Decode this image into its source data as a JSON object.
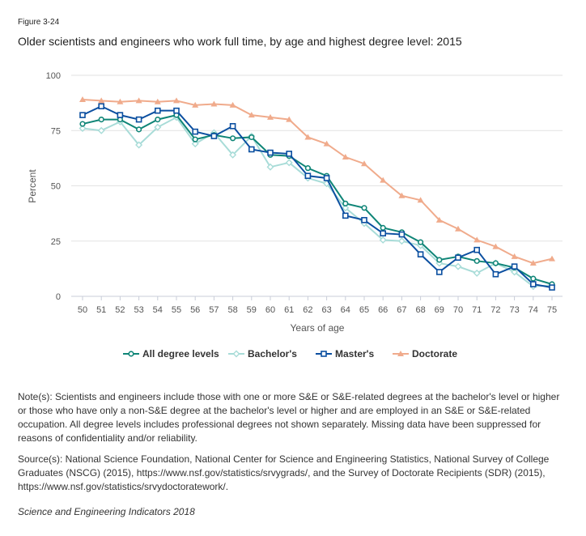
{
  "figure_label": "Figure 3-24",
  "title": "Older scientists and engineers who work full time, by age and highest degree level: 2015",
  "notes": "Note(s): Scientists and engineers include those with one or more S&E or S&E-related degrees at the bachelor's level or higher or those who have only a non-S&E degree at the bachelor's level or higher and are employed in an S&E or S&E-related occupation. All degree levels includes professional degrees not shown separately. Missing data have been suppressed for reasons of confidentiality and/or reliability.",
  "sources": "Source(s): National Science Foundation, National Center for Science and Engineering Statistics, National Survey of College Graduates (NSCG) (2015), https://www.nsf.gov/statistics/srvygrads/, and the Survey of Doctorate Recipients (SDR) (2015), https://www.nsf.gov/statistics/srvydoctoratework/.",
  "citation": "Science and Engineering Indicators 2018",
  "chart_data": {
    "type": "line",
    "xlabel": "Years of age",
    "ylabel": "Percent",
    "ylim": [
      0,
      100
    ],
    "yticks": [
      0,
      25,
      50,
      75,
      100
    ],
    "grid": true,
    "legend": "bottom",
    "x": [
      50,
      51,
      52,
      53,
      54,
      55,
      56,
      57,
      58,
      59,
      60,
      61,
      62,
      63,
      64,
      65,
      66,
      67,
      68,
      69,
      70,
      71,
      72,
      73,
      74,
      75
    ],
    "series": [
      {
        "name": "All degree levels",
        "color": "#0f8577",
        "marker": "circle",
        "values": [
          78,
          80,
          80,
          75.5,
          80,
          82,
          71,
          73,
          71.5,
          72,
          64,
          63.5,
          58,
          54.5,
          42,
          40,
          31,
          29,
          24.5,
          16.5,
          18,
          16,
          15,
          13,
          8,
          5.5
        ]
      },
      {
        "name": "Bachelor's",
        "color": "#a8dcd8",
        "marker": "diamond",
        "values": [
          76,
          75,
          79,
          68.5,
          76.5,
          81,
          69,
          74,
          64,
          72.5,
          58.5,
          60.5,
          53.5,
          51,
          40,
          33,
          25.5,
          25,
          23,
          15,
          13.5,
          10.5,
          15,
          11,
          4.5,
          5
        ]
      },
      {
        "name": "Master's",
        "color": "#0b4fa0",
        "marker": "square",
        "values": [
          82,
          86,
          82,
          80,
          84,
          84,
          74.5,
          72.5,
          77,
          66.5,
          65,
          64.5,
          54.5,
          53.5,
          36.5,
          34.5,
          28.5,
          28,
          19,
          11,
          17.5,
          21,
          10,
          13.5,
          5.5,
          4
        ]
      },
      {
        "name": "Doctorate",
        "color": "#f0ab8c",
        "marker": "triangle",
        "values": [
          89,
          88.5,
          88,
          88.5,
          88,
          88.5,
          86.5,
          87,
          86.5,
          82,
          81,
          80,
          72,
          69,
          63,
          60,
          52.5,
          45.5,
          43.5,
          34.5,
          30.5,
          25.5,
          22.5,
          18,
          15,
          17
        ]
      }
    ]
  }
}
